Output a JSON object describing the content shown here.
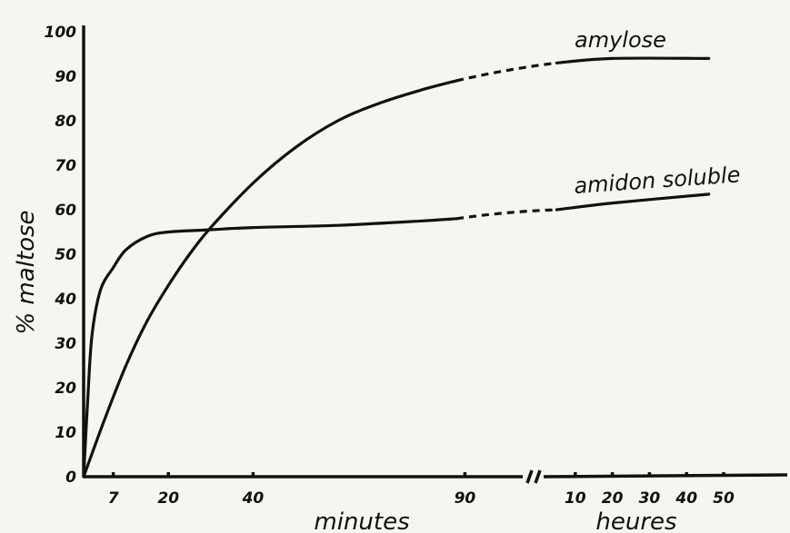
{
  "chart_data": {
    "type": "line",
    "title": "",
    "ylabel": "% maltose",
    "ylim": [
      0,
      100
    ],
    "y_ticks": [
      "0",
      "10",
      "20",
      "30",
      "40",
      "50",
      "60",
      "70",
      "80",
      "90",
      "100"
    ],
    "x_segments": [
      {
        "label": "minutes",
        "unit": "minutes",
        "ticks": [
          "7",
          "20",
          "40",
          "90"
        ]
      },
      {
        "label": "heures",
        "unit": "heures",
        "ticks": [
          "10",
          "20",
          "30",
          "40",
          "50"
        ]
      }
    ],
    "series": [
      {
        "name": "amylose",
        "minutes": [
          [
            0,
            0
          ],
          [
            5,
            13
          ],
          [
            10,
            25
          ],
          [
            15,
            35
          ],
          [
            20,
            43
          ],
          [
            25,
            50
          ],
          [
            30,
            56
          ],
          [
            40,
            66
          ],
          [
            50,
            74
          ],
          [
            60,
            80
          ],
          [
            70,
            84
          ],
          [
            80,
            87
          ],
          [
            88,
            89
          ]
        ],
        "heures": [
          [
            5,
            93
          ],
          [
            20,
            94
          ],
          [
            46,
            94
          ]
        ]
      },
      {
        "name": "amidon soluble",
        "minutes": [
          [
            0,
            0
          ],
          [
            1,
            18
          ],
          [
            2,
            32
          ],
          [
            4,
            42
          ],
          [
            7,
            47
          ],
          [
            10,
            51
          ],
          [
            15,
            54
          ],
          [
            20,
            55
          ],
          [
            30,
            55.5
          ],
          [
            40,
            56
          ],
          [
            60,
            56.5
          ],
          [
            80,
            57.5
          ],
          [
            88,
            58
          ]
        ],
        "heures": [
          [
            5,
            60
          ],
          [
            20,
            61.5
          ],
          [
            46,
            63.5
          ]
        ]
      }
    ]
  }
}
